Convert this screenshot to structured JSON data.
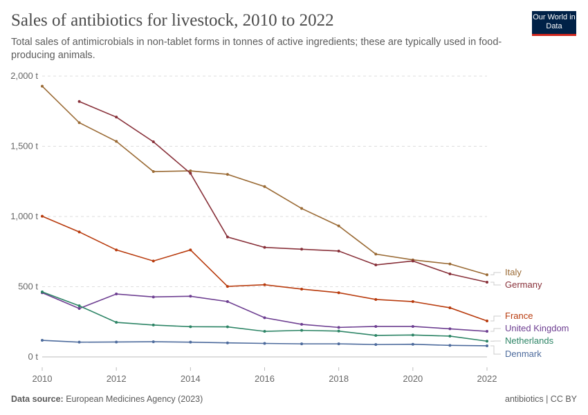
{
  "header": {
    "title": "Sales of antibiotics for livestock, 2010 to 2022",
    "subtitle": "Total sales of antimicrobials in non-tablet forms in tonnes of active ingredients; these are typically used in food-producing animals.",
    "logo": "Our World in Data"
  },
  "footer": {
    "source_label": "Data source:",
    "source": "European Medicines Agency (2023)",
    "right": "antibiotics | CC BY"
  },
  "chart_data": {
    "type": "line",
    "title": "Sales of antibiotics for livestock, 2010 to 2022",
    "xlim": [
      2010,
      2022
    ],
    "ylim": [
      0,
      2000
    ],
    "xticks": [
      "2010",
      "2012",
      "2014",
      "2016",
      "2018",
      "2020",
      "2022"
    ],
    "yticks": [
      "0 t",
      "500 t",
      "1,000 t",
      "1,500 t",
      "2,000 t"
    ],
    "ytick_values": [
      0,
      500,
      1000,
      1500,
      2000
    ],
    "xtick_values": [
      2010,
      2012,
      2014,
      2016,
      2018,
      2020,
      2022
    ],
    "grid": "horizontal dashed",
    "legend": "right, line-end labels",
    "x": [
      2010,
      2011,
      2012,
      2013,
      2014,
      2015,
      2016,
      2017,
      2018,
      2019,
      2020,
      2021,
      2022
    ],
    "series": [
      {
        "name": "Italy",
        "color": "#9a6a34",
        "values": [
          1928,
          1668,
          1535,
          1320,
          1325,
          1300,
          1213,
          1057,
          933,
          732,
          691,
          662,
          585
        ]
      },
      {
        "name": "Germany",
        "color": "#883039",
        "values": [
          null,
          1819,
          1708,
          1532,
          1307,
          854,
          780,
          767,
          754,
          655,
          683,
          591,
          532
        ]
      },
      {
        "name": "France",
        "color": "#b83a0c",
        "values": [
          1002,
          890,
          762,
          683,
          762,
          502,
          514,
          483,
          457,
          409,
          394,
          350,
          256
        ]
      },
      {
        "name": "United Kingdom",
        "color": "#6d3e91",
        "values": [
          457,
          345,
          448,
          427,
          432,
          394,
          279,
          232,
          210,
          217,
          217,
          200,
          182
        ]
      },
      {
        "name": "Netherlands",
        "color": "#2c8465",
        "values": [
          463,
          364,
          246,
          227,
          215,
          214,
          182,
          189,
          184,
          153,
          156,
          148,
          112
        ]
      },
      {
        "name": "Denmark",
        "color": "#4c6a9c",
        "values": [
          118,
          105,
          106,
          108,
          105,
          100,
          96,
          93,
          93,
          88,
          90,
          82,
          79
        ]
      }
    ]
  }
}
